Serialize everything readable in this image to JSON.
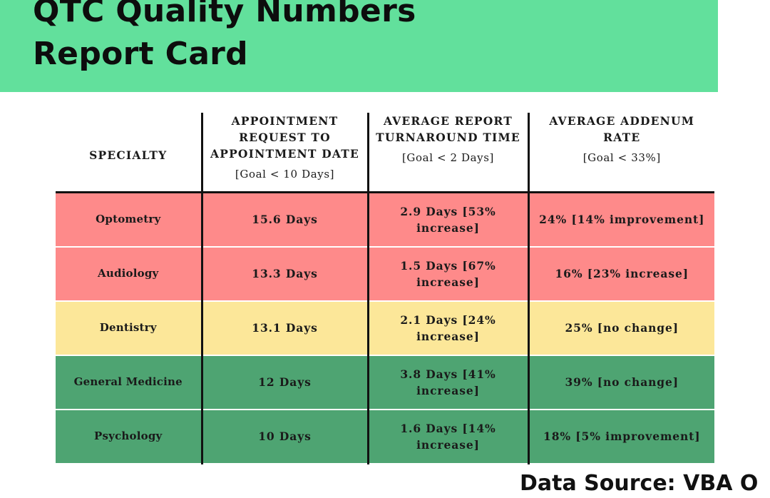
{
  "banner": {
    "title_line1": "QTC Quality Numbers",
    "title_line2": "Report Card",
    "color": "#62e09c"
  },
  "table": {
    "headers": [
      {
        "label": "SPECIALTY",
        "goal": ""
      },
      {
        "label": "APPOINTMENT REQUEST TO APPOINTMENT DATE",
        "goal": "[Goal < 10 Days]"
      },
      {
        "label": "AVERAGE REPORT TURNAROUND TIME",
        "goal": "[Goal < 2 Days]"
      },
      {
        "label": "AVERAGE ADDENUM RATE",
        "goal": "[Goal < 33%]"
      }
    ],
    "rows": [
      {
        "status": "red",
        "specialty": "Optometry",
        "appointment": "15.6 Days",
        "turnaround": "2.9 Days [53% increase]",
        "addendum": "24% [14% improvement]"
      },
      {
        "status": "red",
        "specialty": "Audiology",
        "appointment": "13.3 Days",
        "turnaround": "1.5 Days [67% increase]",
        "addendum": "16% [23% increase]"
      },
      {
        "status": "yellow",
        "specialty": "Dentistry",
        "appointment": "13.1 Days",
        "turnaround": "2.1 Days [24% increase]",
        "addendum": "25% [no change]"
      },
      {
        "status": "green",
        "specialty": "General Medicine",
        "appointment": "12 Days",
        "turnaround": "3.8 Days [41% increase]",
        "addendum": "39% [no change]"
      },
      {
        "status": "green",
        "specialty": "Psychology",
        "appointment": "10 Days",
        "turnaround": "1.6 Days [14% increase]",
        "addendum": "18% [5% improvement]"
      }
    ],
    "status_colors": {
      "red": "#fe8a8a",
      "yellow": "#fce799",
      "green": "#4ea472"
    }
  },
  "footer": {
    "text": "Data Source: VBA O"
  }
}
